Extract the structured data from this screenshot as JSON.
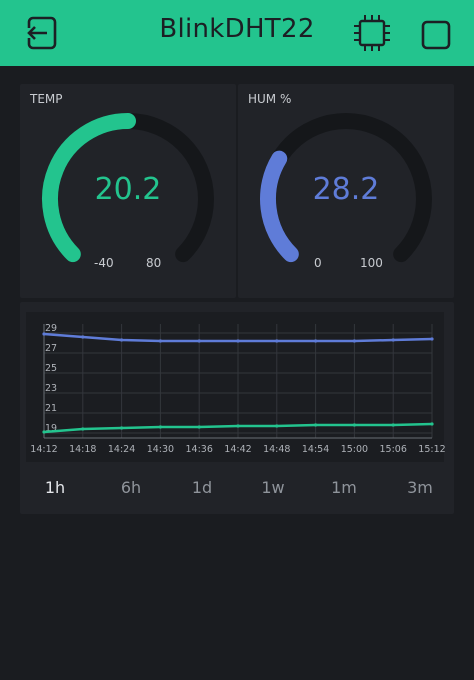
{
  "header": {
    "title": "BlinkDHT22",
    "back_icon": "exit-arrow-icon",
    "device_icon": "chip-icon",
    "mode_icon": "stop-square-icon",
    "background_color": "#23c48e"
  },
  "gauges": [
    {
      "label": "TEMP",
      "value": "20.2",
      "min": "-40",
      "max": "80",
      "fill_fraction": 0.5,
      "color": "#23c48e"
    },
    {
      "label": "HUM %",
      "value": "28.2",
      "min": "0",
      "max": "100",
      "fill_fraction": 0.282,
      "color": "#5f7cd8"
    }
  ],
  "chart_data": {
    "type": "line",
    "x": [
      "14:12",
      "14:18",
      "14:24",
      "14:30",
      "14:36",
      "14:42",
      "14:48",
      "14:54",
      "15:00",
      "15:06",
      "15:12"
    ],
    "y_ticks": [
      "29",
      "27",
      "25",
      "23",
      "21",
      "19"
    ],
    "ylim": [
      18.5,
      29.5
    ],
    "grid": true,
    "series": [
      {
        "color": "#5f7cd8",
        "values": [
          28.9,
          28.6,
          28.3,
          28.2,
          28.2,
          28.2,
          28.2,
          28.2,
          28.2,
          28.3,
          28.4
        ]
      },
      {
        "color": "#23c48e",
        "values": [
          19.1,
          19.4,
          19.5,
          19.6,
          19.6,
          19.7,
          19.7,
          19.8,
          19.8,
          19.8,
          19.9
        ]
      }
    ]
  },
  "periods": [
    "1h",
    "6h",
    "1d",
    "1w",
    "1m",
    "3m"
  ],
  "selected_period": "1h"
}
